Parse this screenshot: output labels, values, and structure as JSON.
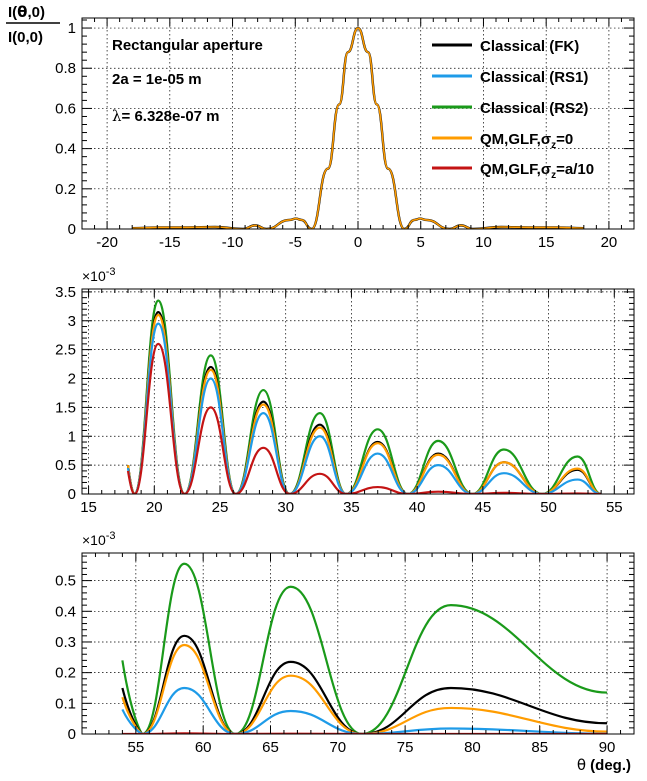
{
  "colors": {
    "classical_fk": "#000000",
    "classical_rs1": "#1e9be8",
    "classical_rs2": "#1a9a1a",
    "qm_glf_0": "#ff9c00",
    "qm_glf_a10": "#c41414"
  },
  "legend": {
    "classical_fk": "Classical (FK)",
    "classical_rs1": "Classical (RS1)",
    "classical_rs2": "Classical (RS2)",
    "qm_glf_0_prefix": "QM,GLF,σ",
    "qm_glf_0_sub": "z",
    "qm_glf_0_suffix": "=0",
    "qm_glf_a10_prefix": "QM,GLF,σ",
    "qm_glf_a10_sub": "z",
    "qm_glf_a10_suffix": "=a/10"
  },
  "annotations": {
    "title": "Rectangular aperture",
    "width": "2a = 1e-05 m",
    "lambda_symbol": "λ",
    "lambda_value": "=   6.328e-07 m"
  },
  "ylabel": {
    "num_I": "I(",
    "num_theta": "θ",
    "num_rest": ",0)",
    "den": "I(0,0)"
  },
  "xlabel": {
    "symbol": "θ",
    "text": " (deg.)"
  },
  "chart_data": [
    {
      "type": "line",
      "panel": "top",
      "xlim": [
        -22,
        22
      ],
      "ylim": [
        0,
        1.05
      ],
      "xticks": [
        -20,
        -15,
        -10,
        -5,
        0,
        5,
        10,
        15,
        20
      ],
      "yticks": [
        0,
        0.2,
        0.4,
        0.6,
        0.8,
        1
      ],
      "ytick_labels": [
        "0",
        "0.2",
        "0.4",
        "0.6",
        "0.8",
        "1"
      ],
      "grid": true,
      "legend_position": "top-right",
      "series": [
        {
          "name": "Classical (FK)",
          "color": "#000000",
          "width": 2.4,
          "x": [
            -18,
            -15.8,
            -13.6,
            -11.4,
            -9.15,
            -8.2,
            -7.3,
            -5.45,
            -4.95,
            -4.5,
            -3.7,
            -2.4,
            -1.5,
            -0.8,
            0,
            0.8,
            1.5,
            2.4,
            3.7,
            4.5,
            4.95,
            5.45,
            7.3,
            8.2,
            9.15,
            11.4,
            13.6,
            15.8,
            18
          ],
          "y": [
            0.004,
            0.008,
            0.008,
            0.01,
            0.0,
            0.018,
            0.0,
            0.045,
            0.052,
            0.045,
            0.0,
            0.3,
            0.62,
            0.88,
            1.0,
            0.88,
            0.62,
            0.3,
            0.0,
            0.045,
            0.052,
            0.045,
            0.0,
            0.018,
            0.0,
            0.01,
            0.008,
            0.008,
            0.004
          ]
        },
        {
          "name": "QM,GLF,σz=0",
          "color": "#ff9c00",
          "width": 1.6,
          "x": [
            -18,
            -15.8,
            -13.6,
            -11.4,
            -9.15,
            -8.2,
            -7.3,
            -5.45,
            -4.95,
            -4.5,
            -3.7,
            -2.4,
            -1.5,
            -0.8,
            0,
            0.8,
            1.5,
            2.4,
            3.7,
            4.5,
            4.95,
            5.45,
            7.3,
            8.2,
            9.15,
            11.4,
            13.6,
            15.8,
            18
          ],
          "y": [
            0.004,
            0.008,
            0.008,
            0.01,
            0.0,
            0.018,
            0.0,
            0.045,
            0.052,
            0.045,
            0.0,
            0.3,
            0.62,
            0.88,
            1.0,
            0.88,
            0.62,
            0.3,
            0.0,
            0.045,
            0.052,
            0.045,
            0.0,
            0.018,
            0.0,
            0.01,
            0.008,
            0.008,
            0.004
          ]
        }
      ]
    },
    {
      "type": "line",
      "panel": "middle",
      "xlim": [
        14.5,
        56.5
      ],
      "ylim": [
        0,
        3.55
      ],
      "multiplier": "×10",
      "multiplier_exp": "-3",
      "xticks": [
        15,
        20,
        25,
        30,
        35,
        40,
        45,
        50,
        55
      ],
      "yticks": [
        0,
        0.5,
        1,
        1.5,
        2,
        2.5,
        3,
        3.5
      ],
      "ytick_labels": [
        "0",
        "0.5",
        "1",
        "1.5",
        "2",
        "2.5",
        "3",
        "3.5"
      ],
      "grid": true,
      "zeros": [
        18.5,
        22.3,
        26.2,
        30.3,
        34.6,
        39.3,
        44.2,
        49.5,
        54.0
      ],
      "peaks_x": [
        20.3,
        24.3,
        28.3,
        32.6,
        37.0,
        41.6,
        46.6,
        52.2
      ],
      "series": [
        {
          "name": "Classical (RS2)",
          "color": "#1a9a1a",
          "start": [
            18.0,
            0.5
          ],
          "end": [
            54.0,
            0.26
          ],
          "peaks": [
            3.35,
            2.4,
            1.8,
            1.4,
            1.12,
            0.92,
            0.77,
            0.65
          ]
        },
        {
          "name": "Classical (FK)",
          "color": "#000000",
          "start": [
            18.0,
            0.5
          ],
          "end": [
            54.0,
            0.18
          ],
          "peaks": [
            3.15,
            2.2,
            1.6,
            1.2,
            0.9,
            0.7,
            0.55,
            0.42
          ]
        },
        {
          "name": "QM,GLF,σz=0",
          "color": "#ff9c00",
          "start": [
            18.0,
            0.5
          ],
          "end": [
            54.0,
            0.18
          ],
          "peaks": [
            3.1,
            2.15,
            1.55,
            1.15,
            0.88,
            0.68,
            0.55,
            0.44
          ]
        },
        {
          "name": "Classical (RS1)",
          "color": "#1e9be8",
          "start": [
            18.0,
            0.45
          ],
          "end": [
            54.0,
            0.1
          ],
          "peaks": [
            2.95,
            2.0,
            1.4,
            1.0,
            0.7,
            0.5,
            0.36,
            0.25
          ]
        },
        {
          "name": "QM,GLF,σz=a/10",
          "color": "#c41414",
          "start": [
            18.0,
            0.4
          ],
          "end": [
            54.0,
            0.0
          ],
          "peaks": [
            2.6,
            1.5,
            0.8,
            0.35,
            0.12,
            0.04,
            0.02,
            0.01
          ]
        }
      ]
    },
    {
      "type": "line",
      "panel": "bottom",
      "xlim": [
        51,
        92
      ],
      "ylim": [
        0,
        0.59
      ],
      "multiplier": "×10",
      "multiplier_exp": "-3",
      "xticks": [
        55,
        60,
        65,
        70,
        75,
        80,
        85,
        90
      ],
      "yticks": [
        0,
        0.1,
        0.2,
        0.3,
        0.4,
        0.5
      ],
      "ytick_labels": [
        "0",
        "0.1",
        "0.2",
        "0.3",
        "0.4",
        "0.5"
      ],
      "grid": true,
      "zeros": [
        55.5,
        62.4,
        71.8
      ],
      "peaks_x": [
        58.6,
        66.5,
        78.4
      ],
      "series": [
        {
          "name": "Classical (RS2)",
          "color": "#1a9a1a",
          "start": [
            54.0,
            0.24
          ],
          "end": [
            90.0,
            0.135
          ],
          "peaks": [
            0.555,
            0.48,
            0.42
          ]
        },
        {
          "name": "Classical (FK)",
          "color": "#000000",
          "start": [
            54.0,
            0.15
          ],
          "end": [
            90.0,
            0.035
          ],
          "peaks": [
            0.32,
            0.235,
            0.15
          ]
        },
        {
          "name": "QM,GLF,σz=0",
          "color": "#ff9c00",
          "start": [
            54.0,
            0.12
          ],
          "end": [
            90.0,
            0.008
          ],
          "peaks": [
            0.29,
            0.19,
            0.085
          ]
        },
        {
          "name": "Classical (RS1)",
          "color": "#1e9be8",
          "start": [
            54.0,
            0.08
          ],
          "end": [
            90.0,
            0.001
          ],
          "peaks": [
            0.15,
            0.075,
            0.018
          ]
        },
        {
          "name": "QM,GLF,σz=a/10",
          "color": "#c41414",
          "start": [
            54.0,
            0.0
          ],
          "end": [
            90.0,
            0.0
          ],
          "peaks": [
            0.002,
            0.001,
            0.0
          ]
        }
      ]
    }
  ]
}
